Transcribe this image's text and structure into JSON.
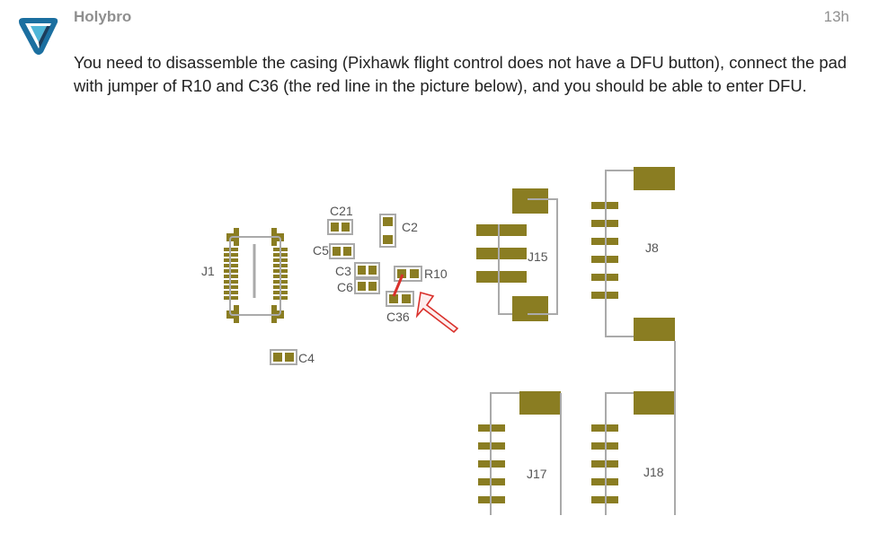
{
  "post": {
    "username": "Holybro",
    "timestamp": "13h",
    "body": "You need to disassemble the casing (Pixhawk flight control does not have a DFU button), connect the pad with jumper of R10 and C36 (the red line in the picture below), and you should be able to enter DFU."
  },
  "avatar": {
    "icon": "holybro-logo-icon"
  },
  "colors": {
    "pad": "#8a7d22",
    "outline": "#aaaaaa",
    "jumper": "#d9302b",
    "text": "#222222",
    "muted": "#8f8f8f"
  },
  "pcb": {
    "labels": {
      "J1": "J1",
      "C21": "C21",
      "C2": "C2",
      "C5": "C5",
      "C3": "C3",
      "C6": "C6",
      "R10": "R10",
      "C36": "C36",
      "C4": "C4",
      "J15": "J15",
      "J8": "J8",
      "J17": "J17",
      "J18": "J18"
    }
  }
}
